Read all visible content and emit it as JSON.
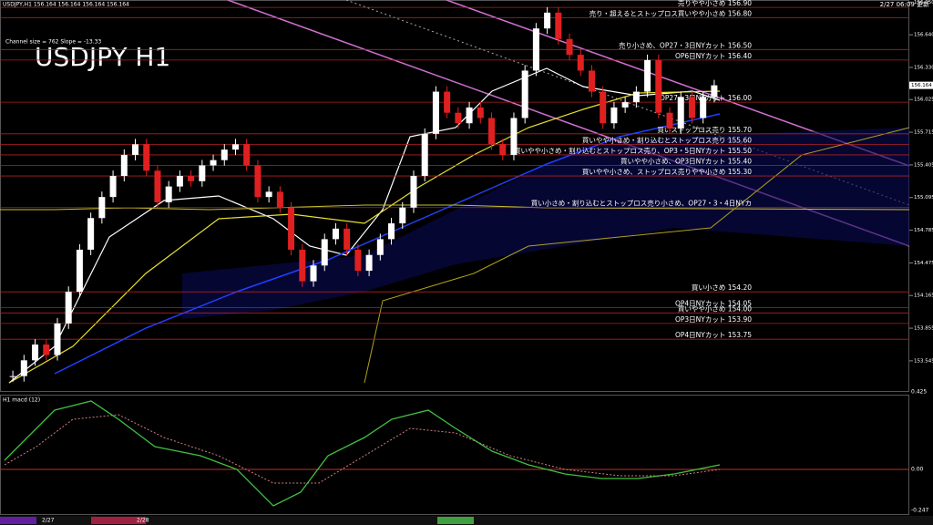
{
  "header": {
    "symbol_line": "USDJPY,H1  156.164 156.164 156.164 156.164",
    "channel_info": "Channel size = 762 Slope = -13.33",
    "big_title": "USDJPY H1",
    "updated": "2/27 06:09 更新",
    "current_price": "156.164"
  },
  "price_axis": {
    "ylim": [
      153.25,
      156.97
    ],
    "ticks": [
      {
        "value": 156.95,
        "label": "156.950"
      },
      {
        "value": 156.64,
        "label": "156.640"
      },
      {
        "value": 156.33,
        "label": "156.330"
      },
      {
        "value": 156.025,
        "label": "156.025"
      },
      {
        "value": 155.715,
        "label": "155.715"
      },
      {
        "value": 155.405,
        "label": "155.405"
      },
      {
        "value": 155.095,
        "label": "155.095"
      },
      {
        "value": 154.785,
        "label": "154.785"
      },
      {
        "value": 154.475,
        "label": "154.475"
      },
      {
        "value": 154.165,
        "label": "154.165"
      },
      {
        "value": 153.855,
        "label": "153.855"
      },
      {
        "value": 153.545,
        "label": "153.545"
      }
    ]
  },
  "levels": [
    {
      "label": "売りやや小さめ 156.90",
      "price": 156.9
    },
    {
      "label": "売り・超えるとストップロス買いやや小さめ 156.80",
      "price": 156.8
    },
    {
      "label": "売り小さめ、OP27・3日NYカット 156.50",
      "price": 156.5
    },
    {
      "label": "OP6日NYカット 156.40",
      "price": 156.4
    },
    {
      "label": "OP27・3日NYカット 156.00",
      "price": 156.0
    },
    {
      "label": "買いストップロス売り 155.70",
      "price": 155.7
    },
    {
      "label": "買いやや小さめ・割り込むとストップロス売り 155.60",
      "price": 155.6
    },
    {
      "label": "買いやや小さめ・割り込むとストップロス売り、OP3・5日NYカット 155.50",
      "price": 155.5
    },
    {
      "label": "買いやや小さめ、OP3日NYカット 155.40",
      "price": 155.4
    },
    {
      "label": "買いやや小さめ、ストップロス売りやや小さめ 155.30",
      "price": 155.3
    },
    {
      "label": "買い小さめ・割り込むとストップロス売り小さめ、OP27・3・4日NYカ",
      "price": 155.0
    },
    {
      "label": "買い小さめ 154.20",
      "price": 154.2
    },
    {
      "label": "OP4日NYカット 154.05",
      "price": 154.05
    },
    {
      "label": "買いやや小さめ 154.00",
      "price": 154.0
    },
    {
      "label": "OP3日NYカット 153.90",
      "price": 153.9
    },
    {
      "label": "OP4日NYカット 153.75",
      "price": 153.75
    }
  ],
  "closes": [
    153.4,
    153.55,
    153.7,
    153.6,
    153.9,
    154.2,
    154.6,
    154.9,
    155.1,
    155.3,
    155.5,
    155.6,
    155.35,
    155.05,
    155.2,
    155.3,
    155.25,
    155.4,
    155.45,
    155.55,
    155.6,
    155.4,
    155.1,
    155.15,
    155.0,
    154.6,
    154.3,
    154.45,
    154.7,
    154.8,
    154.6,
    154.4,
    154.55,
    154.7,
    154.85,
    155.0,
    155.3,
    155.7,
    156.1,
    155.9,
    155.8,
    155.95,
    155.85,
    155.6,
    155.5,
    155.85,
    156.3,
    156.7,
    156.85,
    156.6,
    156.45,
    156.3,
    156.1,
    155.8,
    155.95,
    156.0,
    156.1,
    156.4,
    155.9,
    155.75,
    156.05,
    155.85,
    156.05,
    156.16
  ],
  "macd": {
    "label": "H1  macd (12)",
    "axis": [
      "0.425",
      "0.00",
      "-0.247"
    ]
  },
  "dates": [
    "2/27",
    "2/28"
  ]
}
